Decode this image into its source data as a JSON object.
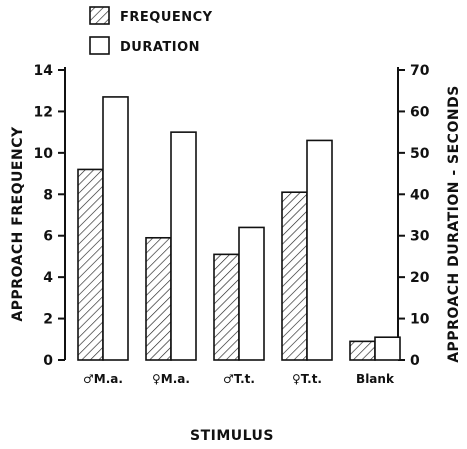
{
  "chart_data": {
    "type": "bar",
    "categories": [
      "♂M.a.",
      "♀M.a.",
      "♂T.t.",
      "♀T.t.",
      "Blank"
    ],
    "series": [
      {
        "name": "FREQUENCY",
        "axis": "left",
        "pattern": "hatched",
        "values": [
          9.2,
          5.9,
          5.1,
          8.1,
          0.9
        ]
      },
      {
        "name": "DURATION",
        "axis": "right",
        "pattern": "open",
        "values": [
          63.5,
          55.0,
          32.0,
          53.0,
          5.5
        ]
      }
    ],
    "xlabel": "STIMULUS",
    "ylabel": "APPROACH  FREQUENCY",
    "ylabel_right": "APPROACH  DURATION - SECONDS",
    "ylim": [
      0,
      14
    ],
    "ylim_right": [
      0,
      70
    ],
    "yticks": [
      "0",
      "2",
      "4",
      "6",
      "8",
      "10",
      "12",
      "14"
    ],
    "yticks_right": [
      "0",
      "10",
      "20",
      "30",
      "40",
      "50",
      "60",
      "70"
    ],
    "legend_position": "top-left",
    "grid": false
  }
}
